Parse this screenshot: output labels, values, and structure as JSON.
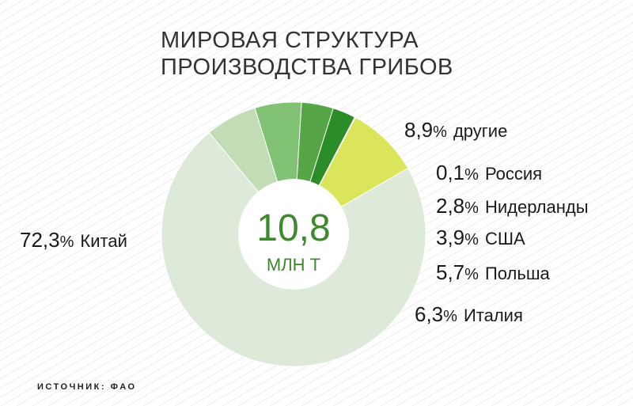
{
  "title": {
    "line1": "МИРОВАЯ СТРУКТУРА",
    "line2": "ПРОИЗВОДСТВА ГРИБОВ"
  },
  "center": {
    "value": "10,8",
    "unit": "МЛН Т"
  },
  "source": "ИСТОЧНИК: ФАО",
  "chart_data": {
    "type": "pie",
    "title": "МИРОВАЯ СТРУКТУРА ПРОИЗВОДСТВА ГРИБОВ",
    "total": "10,8 МЛН Т",
    "slices": [
      {
        "label": "Китай",
        "value": 72.3,
        "value_text": "72,3",
        "color": "#ddeada"
      },
      {
        "label": "Италия",
        "value": 6.3,
        "value_text": "6,3",
        "color": "#c2dcb6"
      },
      {
        "label": "Польша",
        "value": 5.7,
        "value_text": "5,7",
        "color": "#82c274"
      },
      {
        "label": "США",
        "value": 3.9,
        "value_text": "3,9",
        "color": "#56a648"
      },
      {
        "label": "Нидерланды",
        "value": 2.8,
        "value_text": "2,8",
        "color": "#2a8d27"
      },
      {
        "label": "Россия",
        "value": 0.1,
        "value_text": "0,1",
        "color": "#d9452b"
      },
      {
        "label": "другие",
        "value": 8.9,
        "value_text": "8,9",
        "color": "#dbe55a"
      }
    ]
  }
}
